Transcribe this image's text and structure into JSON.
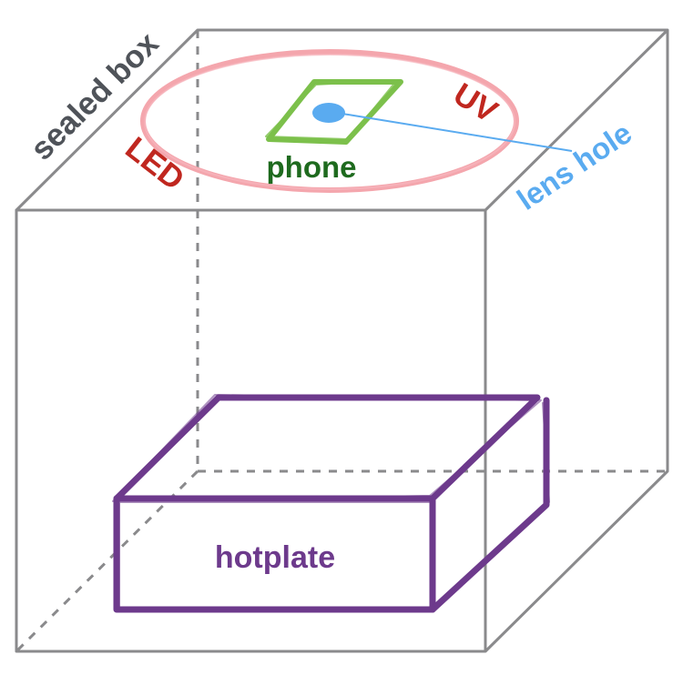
{
  "labels": {
    "sealed_box": "sealed box",
    "uv": "UV",
    "led": "LED",
    "phone": "phone",
    "lens_hole": "lens hole",
    "hotplate": "hotplate"
  },
  "colors": {
    "box_edge": "#8a8a8c",
    "box_label": "#4f5359",
    "uv_led_ring": "#f4a6ad",
    "uv_led_text": "#c0271f",
    "phone": "#7cc04b",
    "phone_text": "#1e6a1e",
    "lens": "#5aabf0",
    "hotplate": "#6d3a8c"
  }
}
